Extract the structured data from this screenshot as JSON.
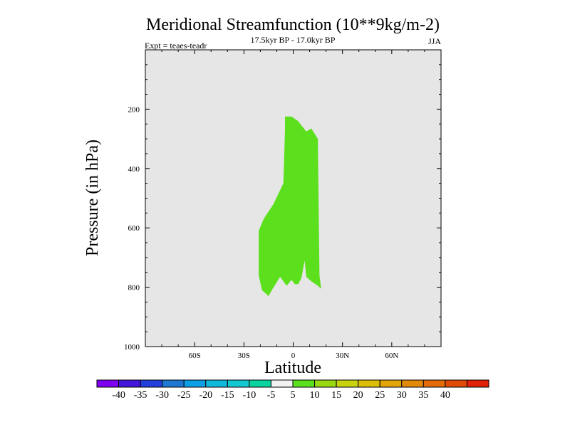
{
  "chart_data": {
    "type": "contour",
    "title": "Meridional Streamfunction (10**9kg/m-2)",
    "subtitle": "17.5kyr BP - 17.0kyr BP",
    "left_label": "Expt = teaes-teadr",
    "right_label": "JJA",
    "xlabel": "Latitude",
    "ylabel": "Pressure (in hPa)",
    "xlim": [
      -90,
      90
    ],
    "ylim": [
      1000,
      0
    ],
    "x_ticks": [
      {
        "value": -60,
        "label": "60S"
      },
      {
        "value": -30,
        "label": "30S"
      },
      {
        "value": 0,
        "label": "0"
      },
      {
        "value": 30,
        "label": "30N"
      },
      {
        "value": 60,
        "label": "60N"
      }
    ],
    "y_ticks": [
      {
        "value": 200,
        "label": "200"
      },
      {
        "value": 400,
        "label": "400"
      },
      {
        "value": 600,
        "label": "600"
      },
      {
        "value": 800,
        "label": "800"
      },
      {
        "value": 1000,
        "label": "1000"
      }
    ],
    "background_color": "#e6e6e6",
    "filled_region": {
      "level": "5 to 10",
      "color": "#5ce01e",
      "outline": [
        [
          -5,
          225
        ],
        [
          -1,
          225
        ],
        [
          3,
          240
        ],
        [
          8,
          275
        ],
        [
          11,
          265
        ],
        [
          15,
          300
        ],
        [
          16,
          760
        ],
        [
          17,
          805
        ],
        [
          15,
          795
        ],
        [
          11,
          780
        ],
        [
          8,
          765
        ],
        [
          7,
          710
        ],
        [
          5,
          770
        ],
        [
          3,
          790
        ],
        [
          1,
          790
        ],
        [
          -1,
          775
        ],
        [
          -4,
          795
        ],
        [
          -8,
          765
        ],
        [
          -13,
          810
        ],
        [
          -15,
          830
        ],
        [
          -19,
          810
        ],
        [
          -21,
          760
        ],
        [
          -21,
          610
        ],
        [
          -18,
          570
        ],
        [
          -12,
          520
        ],
        [
          -6,
          450
        ],
        [
          -5,
          270
        ]
      ]
    },
    "colorbar": {
      "colors": [
        "#7d00ef",
        "#4416dc",
        "#2440dc",
        "#1e78d2",
        "#0ba0e6",
        "#10b8dc",
        "#14c8d2",
        "#0ad3a0",
        "#f2f2f2",
        "#5ce01e",
        "#9ad812",
        "#c8d20e",
        "#dcbe0a",
        "#e2a408",
        "#e28a08",
        "#e26c08",
        "#e24a08",
        "#e22208"
      ],
      "labels": [
        "-40",
        "-35",
        "-30",
        "-25",
        "-20",
        "-15",
        "-10",
        "-5",
        "5",
        "10",
        "15",
        "20",
        "25",
        "30",
        "35",
        "40"
      ]
    }
  }
}
